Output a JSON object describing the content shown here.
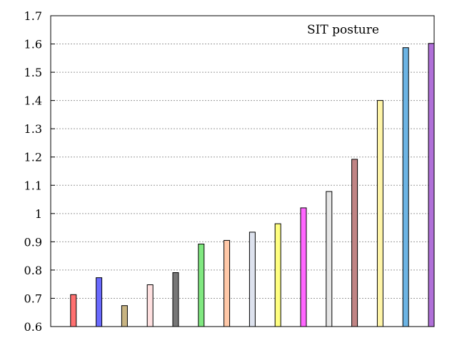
{
  "chart_data": {
    "type": "bar",
    "annotation": "SIT posture",
    "ylim": [
      0.6,
      1.7
    ],
    "yticks": [
      "0.6",
      "0.7",
      "0.8",
      "0.9",
      "1",
      "1.1",
      "1.2",
      "1.3",
      "1.4",
      "1.5",
      "1.6",
      "1.7"
    ],
    "grid": true,
    "values": [
      0.713,
      0.773,
      0.674,
      0.748,
      0.791,
      0.892,
      0.905,
      0.934,
      0.964,
      1.02,
      1.078,
      1.192,
      1.4,
      1.587,
      1.602
    ],
    "colors": [
      "#ff7070",
      "#6a6aff",
      "#c8b482",
      "#ffe0e0",
      "#777777",
      "#80e880",
      "#ffc8a8",
      "#dde2ee",
      "#ffff80",
      "#ff66ff",
      "#e6e6e6",
      "#c08484",
      "#fff5a8",
      "#6cb4e4",
      "#b070d8"
    ]
  }
}
